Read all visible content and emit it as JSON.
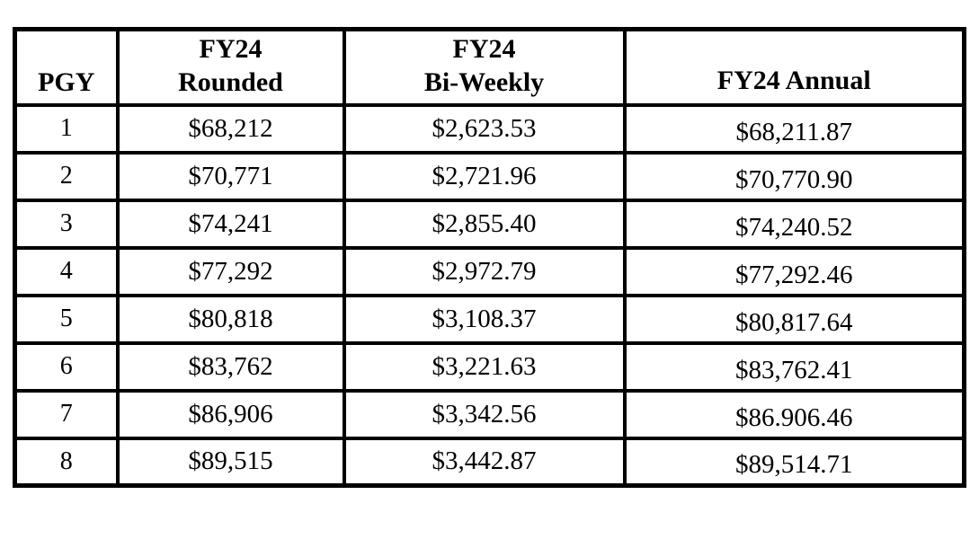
{
  "table": {
    "columns": [
      {
        "key": "pgy",
        "label": "PGY"
      },
      {
        "key": "rounded",
        "label": "FY24\nRounded"
      },
      {
        "key": "biweekly",
        "label": "FY24\nBi-Weekly"
      },
      {
        "key": "annual",
        "label": "FY24 Annual"
      }
    ],
    "rows": [
      {
        "pgy": "1",
        "rounded": "$68,212",
        "biweekly": "$2,623.53",
        "annual": "$68,211.87"
      },
      {
        "pgy": "2",
        "rounded": "$70,771",
        "biweekly": "$2,721.96",
        "annual": "$70,770.90"
      },
      {
        "pgy": "3",
        "rounded": "$74,241",
        "biweekly": "$2,855.40",
        "annual": "$74,240.52"
      },
      {
        "pgy": "4",
        "rounded": "$77,292",
        "biweekly": "$2,972.79",
        "annual": "$77,292.46"
      },
      {
        "pgy": "5",
        "rounded": "$80,818",
        "biweekly": "$3,108.37",
        "annual": "$80,817.64"
      },
      {
        "pgy": "6",
        "rounded": "$83,762",
        "biweekly": "$3,221.63",
        "annual": "$83,762.41"
      },
      {
        "pgy": "7",
        "rounded": "$86,906",
        "biweekly": "$3,342.56",
        "annual": "$86.906.46"
      },
      {
        "pgy": "8",
        "rounded": "$89,515",
        "biweekly": "$3,442.87",
        "annual": "$89,514.71"
      }
    ],
    "colors": {
      "border": "#000000",
      "text": "#000000",
      "background": "#ffffff"
    }
  }
}
